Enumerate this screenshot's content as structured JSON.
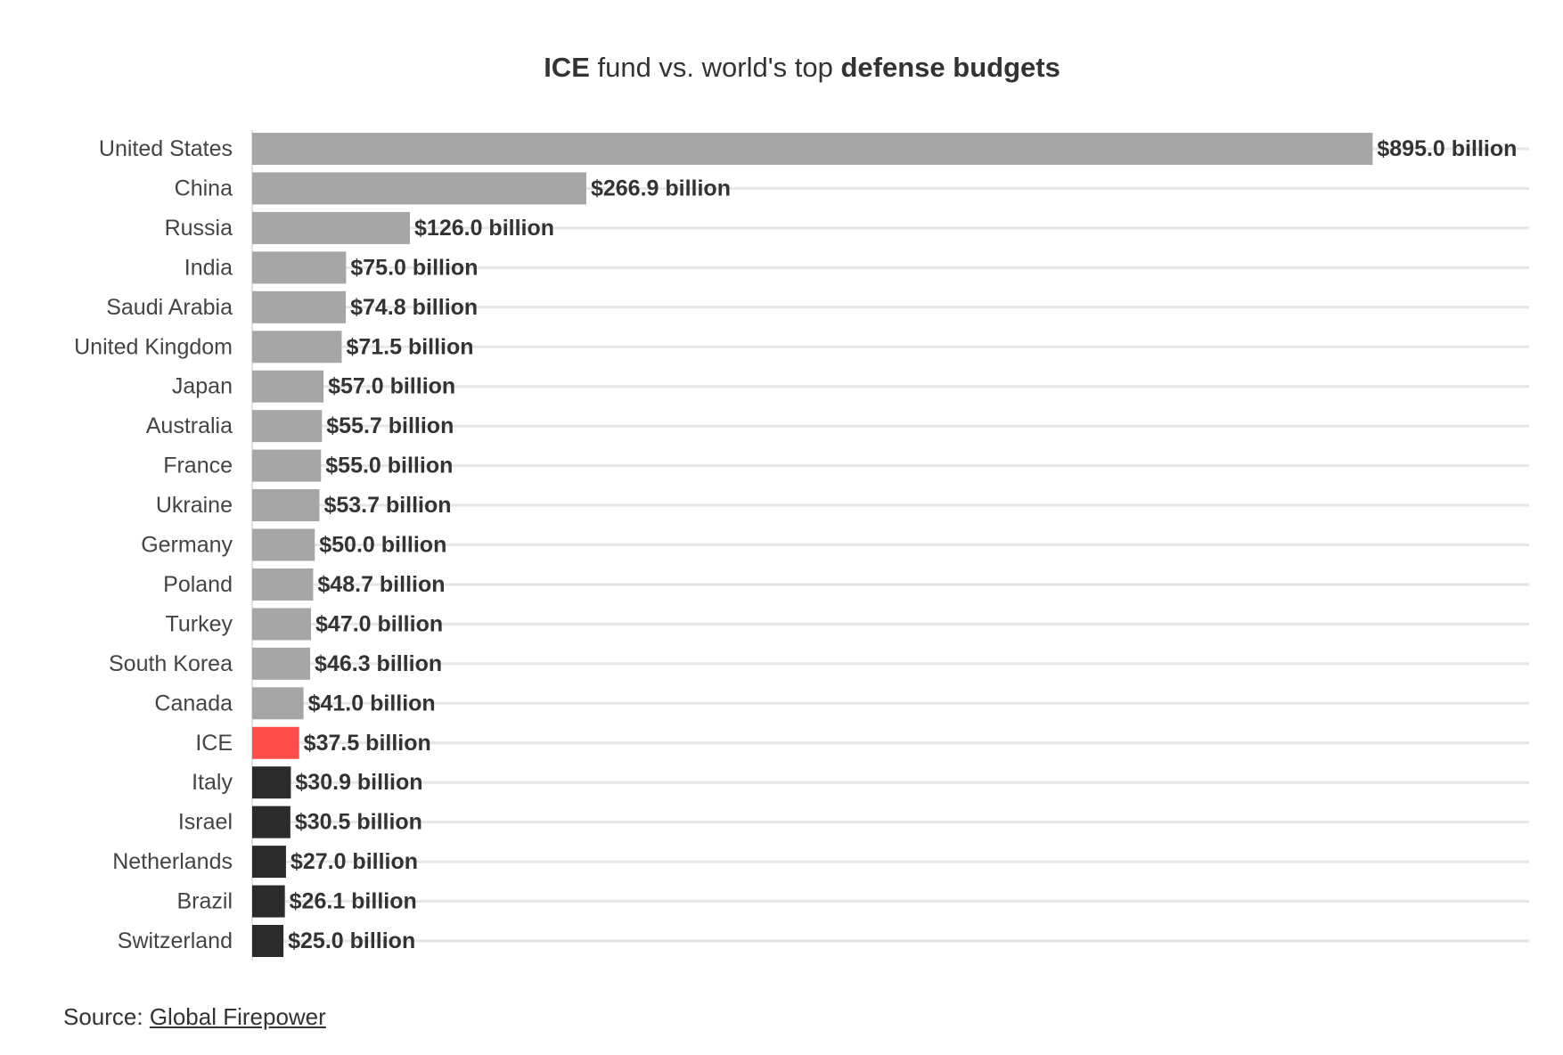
{
  "title": {
    "part1": "ICE",
    "part2": " fund vs. world's top ",
    "part3": "defense budgets"
  },
  "source": {
    "label": "Source: ",
    "link_text": "Global Firepower"
  },
  "colors": {
    "default_bar": "#a6a6a6",
    "highlight_bar": "#ff4d4a",
    "below_bar": "#2b2b2b",
    "gridline": "#e6e6e6",
    "text": "#333333"
  },
  "chart_data": {
    "type": "bar",
    "orientation": "horizontal",
    "title": "ICE fund vs. world's top defense budgets",
    "xlabel": "",
    "ylabel": "",
    "grid": true,
    "legend": "none",
    "xlim": [
      0,
      1020
    ],
    "value_label_suffix": " billion",
    "value_label_prefix": "$",
    "categories": [
      "United States",
      "China",
      "Russia",
      "India",
      "Saudi Arabia",
      "United Kingdom",
      "Japan",
      "Australia",
      "France",
      "Ukraine",
      "Germany",
      "Poland",
      "Turkey",
      "South Korea",
      "Canada",
      "ICE",
      "Italy",
      "Israel",
      "Netherlands",
      "Brazil",
      "Switzerland"
    ],
    "values": [
      895.0,
      266.9,
      126.0,
      75.0,
      74.8,
      71.5,
      57.0,
      55.7,
      55.0,
      53.7,
      50.0,
      48.7,
      47.0,
      46.3,
      41.0,
      37.5,
      30.9,
      30.5,
      27.0,
      26.1,
      25.0
    ],
    "value_labels": [
      "$895.0 billion",
      "$266.9 billion",
      "$126.0 billion",
      "$75.0 billion",
      "$74.8 billion",
      "$71.5 billion",
      "$57.0 billion",
      "$55.7 billion",
      "$55.0 billion",
      "$53.7 billion",
      "$50.0 billion",
      "$48.7 billion",
      "$47.0 billion",
      "$46.3 billion",
      "$41.0 billion",
      "$37.5 billion",
      "$30.9 billion",
      "$30.5 billion",
      "$27.0 billion",
      "$26.1 billion",
      "$25.0 billion"
    ],
    "bar_group": [
      "above",
      "above",
      "above",
      "above",
      "above",
      "above",
      "above",
      "above",
      "above",
      "above",
      "above",
      "above",
      "above",
      "above",
      "above",
      "highlight",
      "below",
      "below",
      "below",
      "below",
      "below"
    ]
  }
}
